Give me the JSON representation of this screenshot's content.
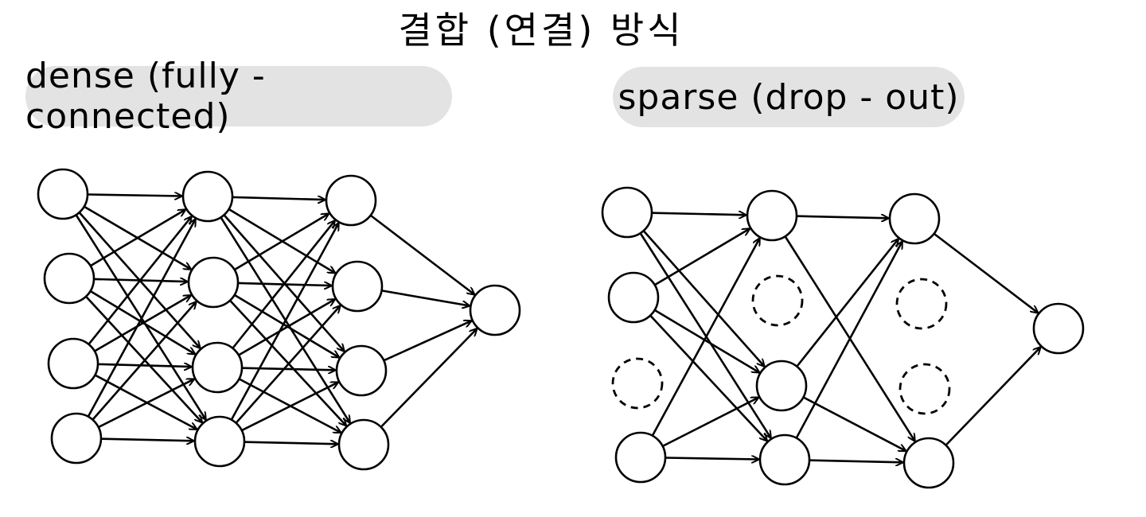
{
  "title": "결합 (연결) 방식",
  "dense": {
    "label": "dense (fully - connected)"
  },
  "sparse": {
    "label": "sparse (drop - out)"
  },
  "colors": {
    "stroke": "#000000",
    "pill_background": "#e3e3e3",
    "page_background": "#ffffff"
  },
  "networks": [
    {
      "id": "dense",
      "layers": [
        [
          "active",
          "active",
          "active",
          "active"
        ],
        [
          "active",
          "active",
          "active",
          "active"
        ],
        [
          "active",
          "active",
          "active",
          "active"
        ],
        [
          "active"
        ]
      ]
    },
    {
      "id": "sparse",
      "layers": [
        [
          "active",
          "active",
          "dropped",
          "active"
        ],
        [
          "active",
          "dropped",
          "active",
          "active"
        ],
        [
          "active",
          "dropped",
          "dropped",
          "active"
        ],
        [
          "active"
        ]
      ]
    }
  ]
}
